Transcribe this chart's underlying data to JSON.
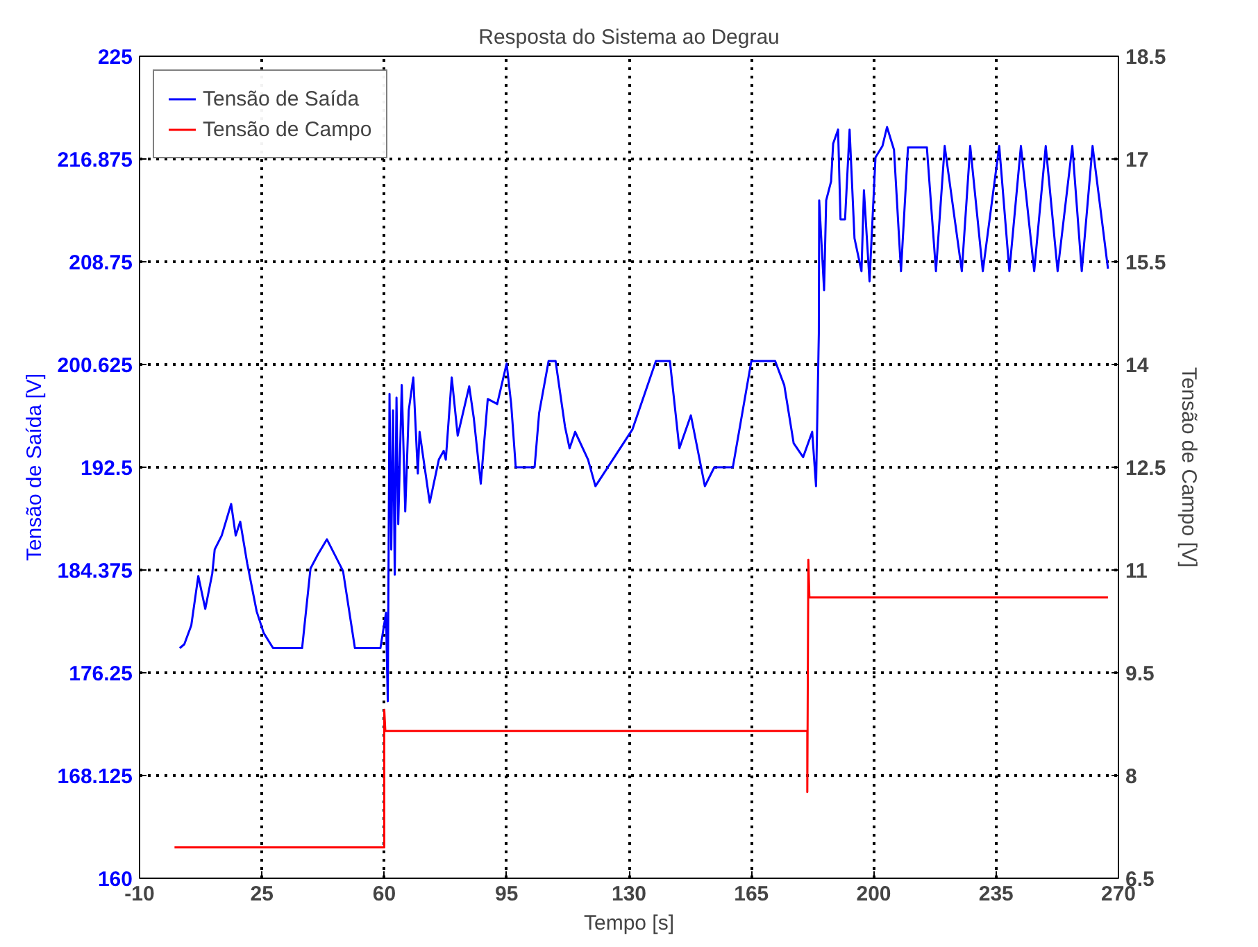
{
  "chart_data": {
    "type": "line",
    "title": "Resposta do Sistema ao Degrau",
    "xlabel": "Tempo [s]",
    "ylabel": "Tensão de Saída [V]",
    "y2label": "Tensão de Campo [V]",
    "xlim": [
      -10,
      270
    ],
    "xticks": [
      -10,
      25,
      60,
      95,
      130,
      165,
      200,
      235,
      270
    ],
    "ylim": [
      160,
      225
    ],
    "yticks": [
      160,
      168.125,
      176.25,
      184.375,
      192.5,
      200.625,
      208.75,
      216.875,
      225
    ],
    "y2lim": [
      6.5,
      18.5
    ],
    "y2ticks": [
      6.5,
      8,
      9.5,
      11,
      12.5,
      14,
      15.5,
      17,
      18.5
    ],
    "grid": true,
    "legend": "top left",
    "line_style": "solid",
    "marker": "none",
    "series": [
      {
        "name": "Tensão de Saída",
        "color": "#0000ff",
        "axis": "y",
        "x": [
          1.5,
          2.8,
          4.8,
          6.8,
          8.8,
          10.8,
          11.5,
          13.5,
          16.2,
          17.5,
          18.8,
          20.8,
          23.5,
          25.5,
          28.2,
          36.5,
          38.9,
          41,
          43.6,
          48.2,
          51.6,
          58.9,
          60.5,
          61,
          61.5,
          62,
          62.5,
          63,
          63.5,
          64,
          65,
          66,
          67,
          68.3,
          69.6,
          70.1,
          73,
          75.6,
          77,
          77.6,
          79.3,
          81,
          84.3,
          85.6,
          87.6,
          89.6,
          92.3,
          95,
          96.3,
          97.6,
          103,
          104.3,
          107,
          109,
          111.7,
          113,
          114.6,
          118.3,
          120.4,
          131,
          137.7,
          141.7,
          144.4,
          147.7,
          151.7,
          154.4,
          159.7,
          165,
          171.8,
          174.4,
          177.1,
          179.8,
          182.4,
          183.5,
          184.3,
          184.4,
          185.8,
          186.4,
          187.8,
          188.4,
          189.8,
          190.5,
          191.8,
          193.1,
          194.5,
          196.5,
          197.2,
          198.8,
          200.5,
          202.5,
          203.8,
          205.8,
          207.8,
          209.8,
          215.2,
          217.8,
          220.3,
          225.2,
          227.6,
          231.2,
          235.9,
          238.8,
          242.1,
          245.9,
          249.2,
          252.6,
          256.8,
          259.5,
          262.6,
          267
        ],
        "values": [
          178.2,
          178.5,
          180,
          183.9,
          181.3,
          184.1,
          186,
          187.1,
          189.6,
          187.1,
          188.2,
          184.9,
          181.1,
          179.4,
          178.2,
          178.2,
          184.5,
          185.6,
          186.8,
          184.3,
          178.2,
          178.2,
          181,
          174,
          198.3,
          186,
          197,
          184,
          198,
          188,
          199,
          189,
          197,
          199.6,
          192,
          195.3,
          189.7,
          193.1,
          193.8,
          193.1,
          199.6,
          195,
          198.9,
          196.4,
          191.2,
          197.9,
          197.5,
          200.7,
          197.5,
          192.5,
          192.5,
          196.8,
          200.9,
          200.9,
          195.7,
          194,
          195.3,
          193.1,
          191,
          195.5,
          200.9,
          200.9,
          194,
          196.6,
          191,
          192.5,
          192.5,
          200.9,
          200.9,
          199,
          194.4,
          193.3,
          195.3,
          191,
          203.1,
          213.6,
          206.5,
          213.6,
          215.1,
          218.1,
          219.2,
          212.1,
          212.1,
          219.2,
          210.6,
          208,
          214.4,
          207.2,
          217,
          217.9,
          219.4,
          217.6,
          208,
          217.8,
          217.8,
          208,
          217.9,
          208,
          217.9,
          208,
          217.9,
          208,
          217.9,
          208,
          217.9,
          208,
          217.9,
          208,
          217.9,
          208.2
        ]
      },
      {
        "name": "Tensão de Campo",
        "color": "#ff0000",
        "axis": "y2",
        "x": [
          0,
          60,
          60,
          60.3,
          60.6,
          181,
          181,
          181.3,
          181.6,
          267
        ],
        "values": [
          6.95,
          6.95,
          8.96,
          8.65,
          8.65,
          8.65,
          7.76,
          11.15,
          10.6,
          10.6
        ]
      }
    ]
  }
}
